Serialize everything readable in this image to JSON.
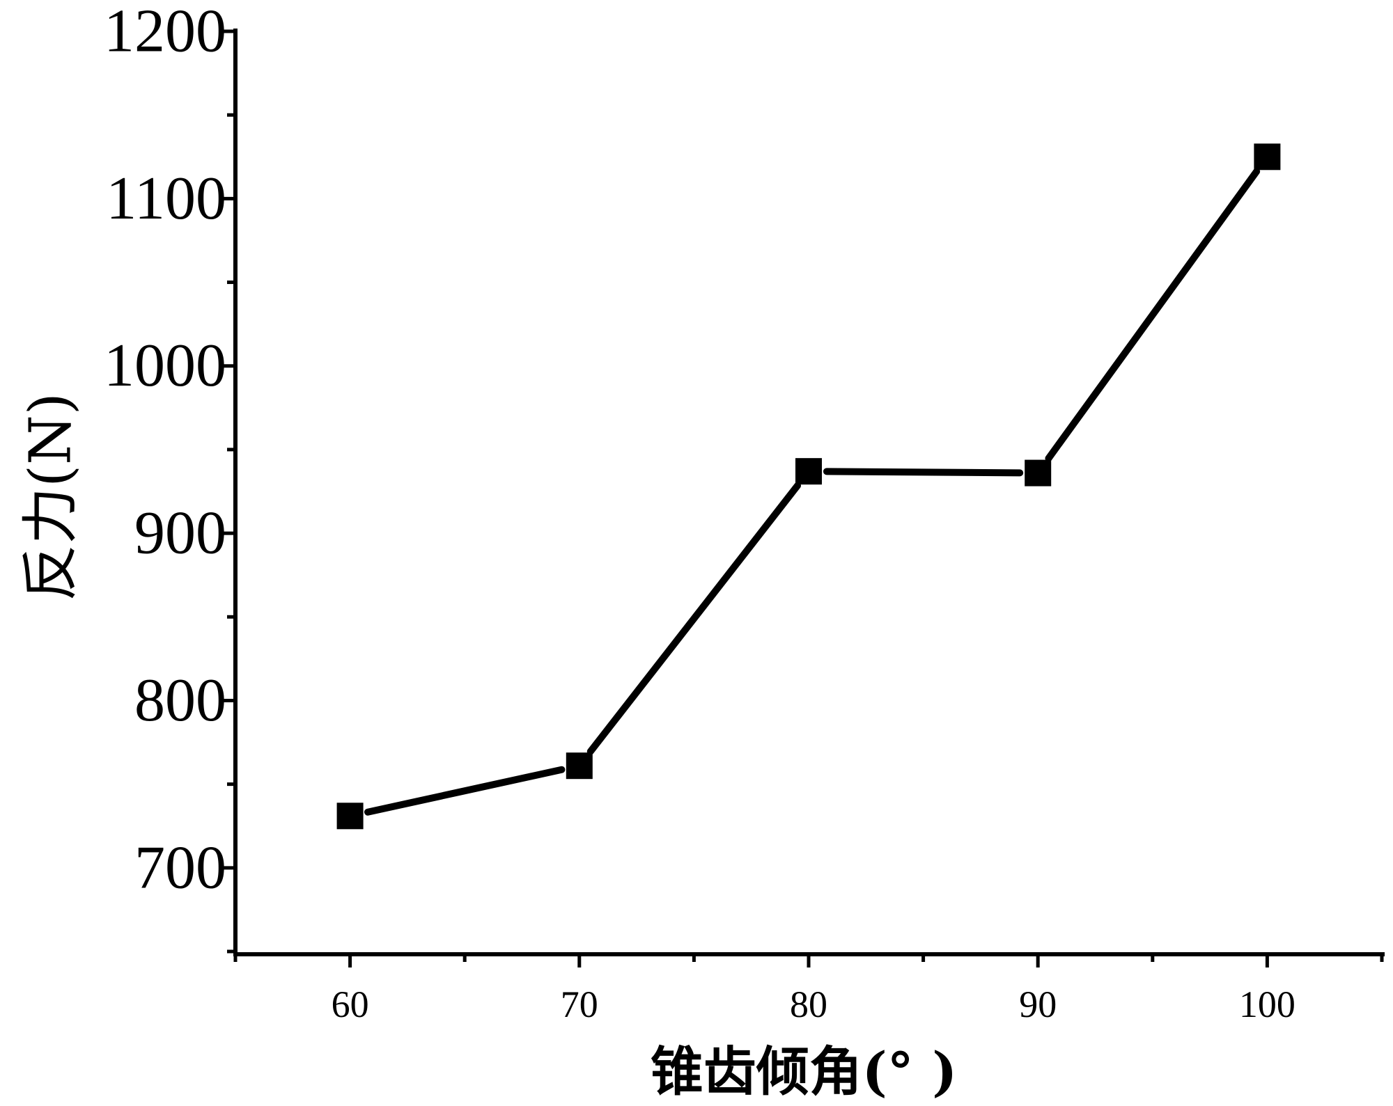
{
  "chart_data": {
    "type": "line",
    "xlabel": "锥齿倾角(°  )",
    "ylabel": "反力(N)",
    "x": [
      60,
      70,
      80,
      90,
      100
    ],
    "series": [
      {
        "values": [
          731,
          761,
          937,
          936,
          1125
        ],
        "color": "#000000",
        "marker": "square"
      }
    ],
    "xlim": [
      55,
      105
    ],
    "ylim": [
      650,
      1200
    ],
    "xticks": [
      60,
      70,
      80,
      90,
      100
    ],
    "xminor": [
      55,
      65,
      75,
      85,
      95,
      105
    ],
    "yticks": [
      700,
      800,
      900,
      1000,
      1100,
      1200
    ],
    "yminor": [
      650,
      750,
      850,
      950,
      1050,
      1150
    ],
    "grid": false,
    "legend": "none"
  }
}
